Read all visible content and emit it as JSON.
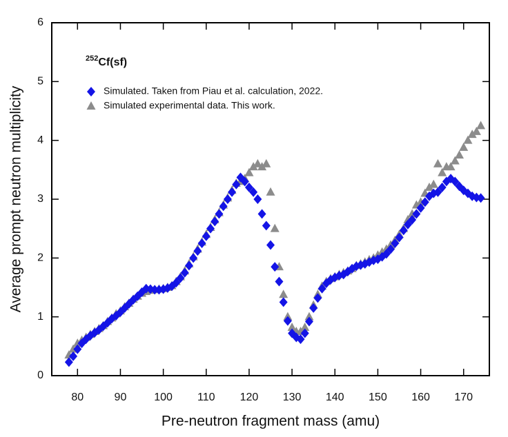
{
  "chart_data": {
    "type": "scatter",
    "xlabel": "Pre-neutron fragment mass (amu)",
    "ylabel": "Average prompt neutron multiplicity",
    "annotation": {
      "superscript": "252",
      "text": "Cf(sf)"
    },
    "x": [
      78,
      79,
      80,
      81,
      82,
      83,
      84,
      85,
      86,
      87,
      88,
      89,
      90,
      91,
      92,
      93,
      94,
      95,
      96,
      97,
      98,
      99,
      100,
      101,
      102,
      103,
      104,
      105,
      106,
      107,
      108,
      109,
      110,
      111,
      112,
      113,
      114,
      115,
      116,
      117,
      118,
      119,
      120,
      121,
      122,
      123,
      124,
      125,
      126,
      127,
      128,
      129,
      130,
      131,
      132,
      133,
      134,
      135,
      136,
      137,
      138,
      139,
      140,
      141,
      142,
      143,
      144,
      145,
      146,
      147,
      148,
      149,
      150,
      151,
      152,
      153,
      154,
      155,
      156,
      157,
      158,
      159,
      160,
      161,
      162,
      163,
      164,
      165,
      166,
      167,
      168,
      169,
      170,
      171,
      172,
      173,
      174
    ],
    "series": [
      {
        "name": "Simulated experimental data. This work.",
        "color": "#8c8c8c",
        "marker": "triangle",
        "values": [
          0.35,
          0.45,
          0.55,
          0.6,
          0.65,
          0.7,
          0.75,
          0.8,
          0.85,
          0.92,
          0.98,
          1.05,
          1.1,
          1.17,
          1.23,
          1.3,
          1.35,
          1.4,
          1.43,
          1.45,
          1.46,
          1.47,
          1.48,
          1.5,
          1.53,
          1.6,
          1.68,
          1.78,
          1.9,
          2.02,
          2.15,
          2.27,
          2.4,
          2.52,
          2.65,
          2.77,
          2.9,
          3.02,
          3.15,
          3.27,
          3.3,
          3.35,
          3.45,
          3.55,
          3.6,
          3.55,
          3.6,
          3.12,
          2.5,
          1.85,
          1.38,
          1.0,
          0.82,
          0.75,
          0.75,
          0.82,
          1.0,
          1.2,
          1.38,
          1.52,
          1.6,
          1.65,
          1.68,
          1.72,
          1.75,
          1.78,
          1.82,
          1.87,
          1.9,
          1.93,
          1.97,
          2.0,
          2.05,
          2.1,
          2.15,
          2.22,
          2.3,
          2.4,
          2.5,
          2.65,
          2.75,
          2.9,
          2.95,
          3.1,
          3.2,
          3.25,
          3.6,
          3.45,
          3.55,
          3.55,
          3.65,
          3.75,
          3.88,
          4.0,
          4.1,
          4.15,
          4.25
        ]
      },
      {
        "name": "Simulated. Taken from Piau et al. calculation, 2022.",
        "color": "#1414e6",
        "marker": "diamond",
        "values": [
          0.23,
          0.33,
          0.45,
          0.55,
          0.62,
          0.68,
          0.73,
          0.78,
          0.84,
          0.9,
          0.97,
          1.02,
          1.08,
          1.15,
          1.22,
          1.29,
          1.35,
          1.42,
          1.48,
          1.47,
          1.46,
          1.46,
          1.47,
          1.49,
          1.52,
          1.58,
          1.66,
          1.75,
          1.87,
          2.0,
          2.12,
          2.25,
          2.37,
          2.5,
          2.62,
          2.75,
          2.88,
          3.0,
          3.12,
          3.25,
          3.37,
          3.3,
          3.2,
          3.12,
          3.0,
          2.75,
          2.55,
          2.22,
          1.85,
          1.6,
          1.25,
          0.93,
          0.72,
          0.65,
          0.62,
          0.72,
          0.92,
          1.15,
          1.32,
          1.48,
          1.57,
          1.63,
          1.67,
          1.7,
          1.72,
          1.77,
          1.82,
          1.86,
          1.88,
          1.9,
          1.93,
          1.96,
          1.98,
          2.02,
          2.07,
          2.15,
          2.25,
          2.35,
          2.47,
          2.57,
          2.65,
          2.75,
          2.85,
          2.95,
          3.05,
          3.1,
          3.12,
          3.2,
          3.3,
          3.35,
          3.3,
          3.22,
          3.15,
          3.1,
          3.05,
          3.03,
          3.02
        ]
      }
    ],
    "legend_order": [
      1,
      0
    ],
    "xlim": [
      74,
      176
    ],
    "ylim": [
      0,
      6
    ],
    "xticks": [
      80,
      90,
      100,
      110,
      120,
      130,
      140,
      150,
      160,
      170
    ],
    "yticks": [
      0,
      1,
      2,
      3,
      4,
      5,
      6
    ]
  }
}
